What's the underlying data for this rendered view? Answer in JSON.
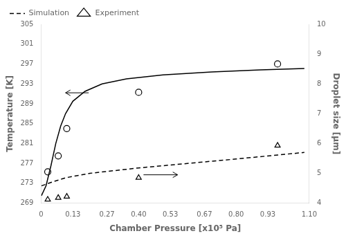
{
  "chart_data": {
    "type": "line",
    "xlabel": "Chamber Pressure [x10⁵ Pa]",
    "ylabel": "Temperature [K]",
    "y2label": "Droplet size [μm]",
    "xlim": [
      0,
      1.1
    ],
    "xticks": [
      0,
      0.13,
      0.27,
      {
        "value": 0.4,
        "label": "0.40"
      },
      0.53,
      0.67,
      {
        "value": 0.8,
        "label": "0.80"
      },
      0.93,
      {
        "value": 1.1,
        "label": "1.10"
      }
    ],
    "ylim": [
      269,
      305
    ],
    "yticks": [
      269,
      273,
      277,
      281,
      285,
      289,
      293,
      297,
      301,
      305
    ],
    "y2lim": [
      4,
      10
    ],
    "y2ticks": [
      4,
      5,
      6,
      7,
      8,
      9,
      10
    ],
    "grid": false,
    "legend": "upper left",
    "series": [
      {
        "x": [
          0.001,
          0.02,
          0.04,
          0.06,
          0.08,
          0.1,
          0.13,
          0.18,
          0.25,
          0.35,
          0.5,
          0.7,
          0.9,
          1.08
        ],
        "values": [
          270.5,
          272.5,
          276.5,
          281.0,
          284.5,
          287.0,
          289.5,
          291.5,
          293.0,
          294.0,
          294.8,
          295.4,
          295.8,
          296.1
        ],
        "color": "#000000",
        "line_style": "solid",
        "marker": "none"
      },
      {
        "x": [
          0.027,
          0.07,
          0.105,
          0.4,
          0.97
        ],
        "values": [
          275.3,
          278.5,
          284.0,
          291.3,
          297.0
        ],
        "color": "#000000",
        "line_style": "none",
        "marker": "circle"
      },
      {
        "x": [
          0.001,
          0.05,
          0.1,
          0.2,
          0.4,
          0.6,
          0.8,
          1.08
        ],
        "values": [
          4.58,
          4.72,
          4.85,
          5.0,
          5.18,
          5.33,
          5.48,
          5.7
        ],
        "color": "#000000",
        "line_style": "dashed",
        "marker": "none",
        "axis": "y2",
        "name": "Simulation"
      },
      {
        "x": [
          0.027,
          0.07,
          0.105,
          0.4,
          0.97
        ],
        "values": [
          4.12,
          4.18,
          4.22,
          4.85,
          5.93
        ],
        "color": "#000000",
        "line_style": "none",
        "marker": "triangle",
        "axis": "y2",
        "name": "Experiment"
      }
    ],
    "annotations": [
      {
        "type": "arrow",
        "x_start": 0.195,
        "x_end": 0.1,
        "y": 291.2,
        "color": "#000000"
      },
      {
        "type": "arrow",
        "x_start": 0.42,
        "x_end": 0.56,
        "y": 4.95,
        "axis": "y2",
        "color": "#000000"
      }
    ]
  }
}
